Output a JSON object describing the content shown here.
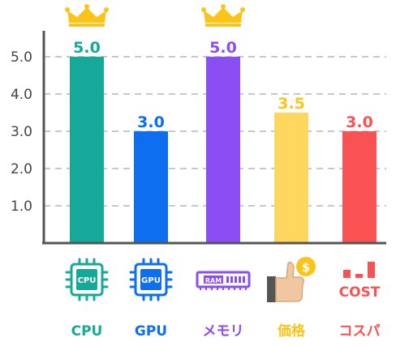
{
  "chart_data": {
    "type": "bar",
    "categories": [
      "CPU",
      "GPU",
      "メモリ",
      "価格",
      "コスパ"
    ],
    "values": [
      5.0,
      3.0,
      5.0,
      3.5,
      3.0
    ],
    "value_labels": [
      "5.0",
      "3.0",
      "5.0",
      "3.5",
      "3.0"
    ],
    "yticks": [
      "1.0",
      "2.0",
      "3.0",
      "4.0",
      "5.0"
    ],
    "ylim": [
      0,
      5.5
    ],
    "grid": "horizontal-dashed",
    "title": "",
    "xlabel": "",
    "ylabel": "",
    "colors": [
      "#16a99a",
      "#0d6ff0",
      "#8a4ef2",
      "#ffd75e",
      "#fa5252"
    ],
    "label_colors": [
      "#16a99a",
      "#0d6ff0",
      "#8a4ef2",
      "#fcc419",
      "#fa5252"
    ],
    "crowned": [
      "CPU",
      "メモリ"
    ]
  },
  "icons": [
    {
      "name": "cpu-chip-icon",
      "text": "CPU"
    },
    {
      "name": "gpu-chip-icon",
      "text": "GPU"
    },
    {
      "name": "ram-module-icon",
      "text": "RAM"
    },
    {
      "name": "thumbs-up-coin-icon",
      "text": "$"
    },
    {
      "name": "cost-icon",
      "text": "COST"
    }
  ],
  "crown_color": "#fcc419"
}
